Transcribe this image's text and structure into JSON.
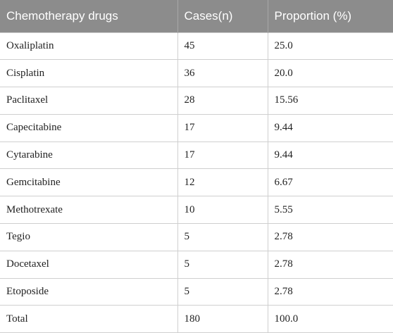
{
  "table": {
    "header": [
      "Chemotherapy drugs",
      "Cases(n)",
      "Proportion (%)"
    ],
    "rows": [
      [
        "Oxaliplatin",
        "45",
        "25.0"
      ],
      [
        "Cisplatin",
        "36",
        "20.0"
      ],
      [
        "Paclitaxel",
        "28",
        "15.56"
      ],
      [
        "Capecitabine",
        "17",
        "9.44"
      ],
      [
        "Cytarabine",
        "17",
        "9.44"
      ],
      [
        "Gemcitabine",
        "12",
        "6.67"
      ],
      [
        "Methotrexate",
        "10",
        "5.55"
      ],
      [
        "Tegio",
        "5",
        "2.78"
      ],
      [
        "Docetaxel",
        "5",
        "2.78"
      ],
      [
        "Etoposide",
        "5",
        "2.78"
      ],
      [
        "Total",
        "180",
        "100.0"
      ]
    ]
  }
}
